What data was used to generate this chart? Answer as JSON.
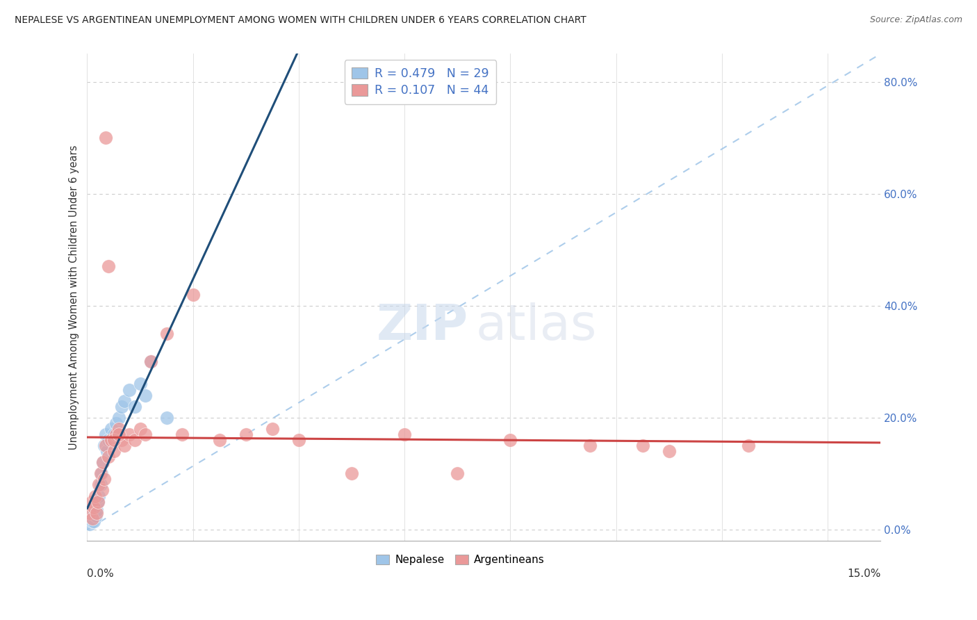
{
  "title": "NEPALESE VS ARGENTINEAN UNEMPLOYMENT AMONG WOMEN WITH CHILDREN UNDER 6 YEARS CORRELATION CHART",
  "source": "Source: ZipAtlas.com",
  "ylabel": "Unemployment Among Women with Children Under 6 years",
  "xlim": [
    0.0,
    15.0
  ],
  "ylim": [
    -2.0,
    85.0
  ],
  "yticks": [
    0,
    20,
    40,
    60,
    80
  ],
  "nepalese_R": 0.479,
  "nepalese_N": 29,
  "argentinean_R": 0.107,
  "argentinean_N": 44,
  "nepalese_color": "#9fc5e8",
  "argentinean_color": "#ea9999",
  "nepalese_line_color": "#1f4e79",
  "argentinean_line_color": "#cc4444",
  "diagonal_line_color": "#9fc5e8",
  "ytick_color": "#4472c4",
  "nepalese_x": [
    0.05,
    0.08,
    0.1,
    0.12,
    0.13,
    0.15,
    0.17,
    0.18,
    0.2,
    0.22,
    0.25,
    0.27,
    0.3,
    0.32,
    0.35,
    0.38,
    0.4,
    0.45,
    0.5,
    0.55,
    0.6,
    0.65,
    0.7,
    0.8,
    0.9,
    1.0,
    1.1,
    1.2,
    1.5
  ],
  "nepalese_y": [
    1.0,
    2.0,
    1.5,
    3.0,
    1.5,
    4.0,
    2.5,
    3.5,
    5.0,
    6.0,
    8.0,
    10.0,
    12.0,
    15.0,
    17.0,
    14.0,
    16.0,
    18.0,
    17.0,
    19.0,
    20.0,
    22.0,
    23.0,
    25.0,
    22.0,
    26.0,
    24.0,
    30.0,
    20.0
  ],
  "argentinean_x": [
    0.05,
    0.08,
    0.1,
    0.12,
    0.15,
    0.18,
    0.2,
    0.22,
    0.25,
    0.28,
    0.3,
    0.32,
    0.35,
    0.4,
    0.45,
    0.5,
    0.55,
    0.6,
    0.65,
    0.7,
    0.8,
    0.9,
    1.0,
    1.1,
    1.2,
    1.5,
    1.8,
    2.0,
    2.5,
    3.0,
    3.5,
    4.0,
    5.0,
    6.0,
    7.0,
    8.0,
    9.5,
    10.5,
    11.0,
    12.5,
    0.35,
    0.4,
    0.5,
    0.6
  ],
  "argentinean_y": [
    3.0,
    5.0,
    2.0,
    4.0,
    6.0,
    3.0,
    5.0,
    8.0,
    10.0,
    7.0,
    12.0,
    9.0,
    15.0,
    13.0,
    16.0,
    14.0,
    17.0,
    18.0,
    16.0,
    15.0,
    17.0,
    16.0,
    18.0,
    17.0,
    30.0,
    35.0,
    17.0,
    42.0,
    16.0,
    17.0,
    18.0,
    16.0,
    10.0,
    17.0,
    10.0,
    16.0,
    15.0,
    15.0,
    14.0,
    15.0,
    70.0,
    47.0,
    16.0,
    17.0
  ]
}
